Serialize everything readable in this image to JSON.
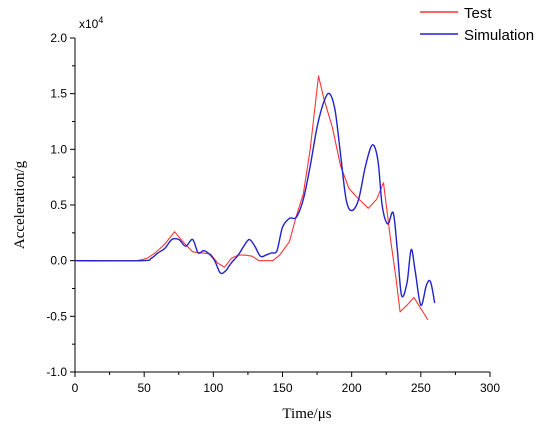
{
  "chart_data": {
    "type": "line",
    "title": "",
    "xlabel": "Time/μs",
    "ylabel": "Acceleration/g",
    "y_multiplier_label": "x10",
    "y_multiplier_exponent": "4",
    "xlim": [
      0,
      300
    ],
    "ylim": [
      -1.0,
      2.0
    ],
    "x_ticks": [
      "0",
      "50",
      "100",
      "150",
      "200",
      "250",
      "300"
    ],
    "y_ticks": [
      "-1.0",
      "-0.5",
      "0.0",
      "0.5",
      "1.0",
      "1.5",
      "2.0"
    ],
    "grid": false,
    "legend_position": "top-right",
    "series": [
      {
        "name": "Test",
        "color": "#ff3333",
        "points": [
          [
            0,
            0.0
          ],
          [
            45,
            0.0
          ],
          [
            52,
            0.02
          ],
          [
            58,
            0.07
          ],
          [
            65,
            0.15
          ],
          [
            72,
            0.26
          ],
          [
            78,
            0.17
          ],
          [
            85,
            0.08
          ],
          [
            92,
            0.07
          ],
          [
            98,
            0.06
          ],
          [
            103,
            -0.02
          ],
          [
            108,
            -0.06
          ],
          [
            113,
            0.02
          ],
          [
            118,
            0.05
          ],
          [
            123,
            0.05
          ],
          [
            128,
            0.04
          ],
          [
            133,
            0.0
          ],
          [
            143,
            0.0
          ],
          [
            148,
            0.05
          ],
          [
            155,
            0.17
          ],
          [
            160,
            0.4
          ],
          [
            165,
            0.6
          ],
          [
            170,
            1.0
          ],
          [
            176,
            1.66
          ],
          [
            180,
            1.45
          ],
          [
            186,
            1.2
          ],
          [
            192,
            0.85
          ],
          [
            198,
            0.65
          ],
          [
            203,
            0.58
          ],
          [
            212,
            0.47
          ],
          [
            218,
            0.55
          ],
          [
            223,
            0.7
          ],
          [
            228,
            0.2
          ],
          [
            232,
            -0.15
          ],
          [
            235,
            -0.46
          ],
          [
            240,
            -0.4
          ],
          [
            245,
            -0.33
          ],
          [
            250,
            -0.43
          ],
          [
            255,
            -0.53
          ]
        ]
      },
      {
        "name": "Simulation",
        "color": "#2222cc",
        "points": [
          [
            0,
            0.0
          ],
          [
            48,
            0.0
          ],
          [
            55,
            0.02
          ],
          [
            60,
            0.07
          ],
          [
            65,
            0.11
          ],
          [
            70,
            0.19
          ],
          [
            75,
            0.19
          ],
          [
            80,
            0.13
          ],
          [
            85,
            0.19
          ],
          [
            89,
            0.07
          ],
          [
            93,
            0.09
          ],
          [
            97,
            0.06
          ],
          [
            101,
            0.0
          ],
          [
            105,
            -0.11
          ],
          [
            109,
            -0.09
          ],
          [
            113,
            -0.02
          ],
          [
            118,
            0.05
          ],
          [
            122,
            0.13
          ],
          [
            126,
            0.19
          ],
          [
            130,
            0.13
          ],
          [
            134,
            0.04
          ],
          [
            138,
            0.05
          ],
          [
            142,
            0.07
          ],
          [
            146,
            0.09
          ],
          [
            150,
            0.3
          ],
          [
            155,
            0.38
          ],
          [
            160,
            0.39
          ],
          [
            165,
            0.55
          ],
          [
            170,
            0.85
          ],
          [
            175,
            1.2
          ],
          [
            180,
            1.43
          ],
          [
            184,
            1.5
          ],
          [
            188,
            1.35
          ],
          [
            192,
            0.95
          ],
          [
            196,
            0.55
          ],
          [
            200,
            0.45
          ],
          [
            205,
            0.55
          ],
          [
            210,
            0.85
          ],
          [
            215,
            1.04
          ],
          [
            219,
            0.9
          ],
          [
            222,
            0.5
          ],
          [
            226,
            0.33
          ],
          [
            230,
            0.43
          ],
          [
            233,
            0.1
          ],
          [
            236,
            -0.31
          ],
          [
            240,
            -0.2
          ],
          [
            243,
            0.1
          ],
          [
            246,
            -0.1
          ],
          [
            250,
            -0.4
          ],
          [
            254,
            -0.22
          ],
          [
            257,
            -0.19
          ],
          [
            260,
            -0.38
          ]
        ]
      }
    ]
  }
}
